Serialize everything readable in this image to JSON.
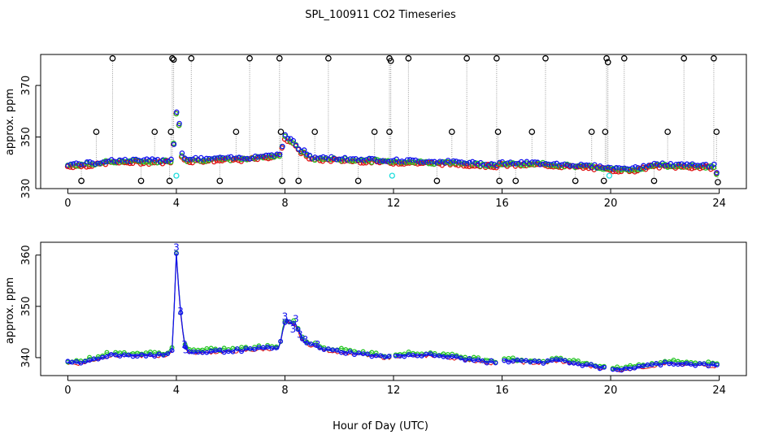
{
  "figure": {
    "title": "SPL_100911  CO2 Timeseries",
    "xlabel": "Hour of Day (UTC)"
  },
  "colors": {
    "black": "#000000",
    "red": "#e01010",
    "green": "#22c422",
    "blue": "#1212ee",
    "cyan": "#22dddd",
    "gray": "#9a9a9a"
  },
  "chart_data": [
    {
      "type": "scatter",
      "title": "",
      "xlabel": "",
      "ylabel": "approx. ppm",
      "xlim": [
        -1,
        25
      ],
      "ylim": [
        330,
        382
      ],
      "xticks": [
        0,
        4,
        8,
        12,
        16,
        20,
        24
      ],
      "xtick_labels": [
        "0",
        "4",
        "8",
        "12",
        "16",
        "20",
        "24"
      ],
      "yticks": [
        330,
        350,
        370
      ],
      "ytick_labels": [
        "330",
        "350",
        "370"
      ],
      "baseline": [
        [
          0,
          339
        ],
        [
          1,
          339.5
        ],
        [
          1.5,
          340.5
        ],
        [
          3.5,
          340.5
        ],
        [
          3.85,
          341
        ],
        [
          4.02,
          362
        ],
        [
          4.1,
          355
        ],
        [
          4.2,
          343
        ],
        [
          4.4,
          341
        ],
        [
          6.5,
          341.5
        ],
        [
          7.8,
          343
        ],
        [
          8,
          350
        ],
        [
          8.3,
          348
        ],
        [
          8.5,
          345
        ],
        [
          8.7,
          344
        ],
        [
          9,
          341.5
        ],
        [
          9.5,
          341.5
        ],
        [
          12,
          340.5
        ],
        [
          14,
          340
        ],
        [
          15.8,
          339
        ],
        [
          15.9,
          339.5
        ],
        [
          17.5,
          339.5
        ],
        [
          19.8,
          338
        ],
        [
          19.9,
          337.5
        ],
        [
          21,
          337.5
        ],
        [
          21.5,
          339
        ],
        [
          23.8,
          338.5
        ],
        [
          23.9,
          336
        ]
      ],
      "spikes_high": [
        {
          "x": 1.65,
          "y": 380.5
        },
        {
          "x": 3.85,
          "y": 380.5
        },
        {
          "x": 3.9,
          "y": 380
        },
        {
          "x": 4.55,
          "y": 380.5
        },
        {
          "x": 6.7,
          "y": 380.5
        },
        {
          "x": 7.8,
          "y": 380.5
        },
        {
          "x": 9.6,
          "y": 380.5
        },
        {
          "x": 11.85,
          "y": 380.5
        },
        {
          "x": 11.9,
          "y": 379.5
        },
        {
          "x": 12.55,
          "y": 380.5
        },
        {
          "x": 14.7,
          "y": 380.5
        },
        {
          "x": 15.8,
          "y": 380.5
        },
        {
          "x": 17.6,
          "y": 380.5
        },
        {
          "x": 19.85,
          "y": 380.5
        },
        {
          "x": 19.9,
          "y": 379
        },
        {
          "x": 20.5,
          "y": 380.5
        },
        {
          "x": 22.7,
          "y": 380.5
        },
        {
          "x": 23.8,
          "y": 380.5
        }
      ],
      "spikes_mid": [
        {
          "x": 1.05,
          "y": 352
        },
        {
          "x": 3.2,
          "y": 352
        },
        {
          "x": 3.8,
          "y": 352
        },
        {
          "x": 6.2,
          "y": 352
        },
        {
          "x": 7.85,
          "y": 352
        },
        {
          "x": 9.1,
          "y": 352
        },
        {
          "x": 11.3,
          "y": 352
        },
        {
          "x": 11.85,
          "y": 352
        },
        {
          "x": 14.15,
          "y": 352
        },
        {
          "x": 15.85,
          "y": 352
        },
        {
          "x": 17.1,
          "y": 352
        },
        {
          "x": 19.3,
          "y": 352
        },
        {
          "x": 19.8,
          "y": 352
        },
        {
          "x": 22.1,
          "y": 352
        },
        {
          "x": 23.9,
          "y": 352
        }
      ],
      "spikes_low": [
        {
          "x": 0.5,
          "y": 333
        },
        {
          "x": 2.7,
          "y": 333
        },
        {
          "x": 3.75,
          "y": 333
        },
        {
          "x": 5.6,
          "y": 333
        },
        {
          "x": 7.9,
          "y": 333
        },
        {
          "x": 8.5,
          "y": 333
        },
        {
          "x": 10.7,
          "y": 333
        },
        {
          "x": 13.6,
          "y": 333
        },
        {
          "x": 15.9,
          "y": 333
        },
        {
          "x": 16.5,
          "y": 333
        },
        {
          "x": 18.7,
          "y": 333
        },
        {
          "x": 19.75,
          "y": 333
        },
        {
          "x": 21.6,
          "y": 333
        },
        {
          "x": 23.95,
          "y": 332.5
        }
      ],
      "cyan_points": [
        {
          "x": 4.0,
          "y": 335
        },
        {
          "x": 11.95,
          "y": 335
        },
        {
          "x": 19.95,
          "y": 335
        }
      ]
    },
    {
      "type": "line",
      "title": "",
      "xlabel": "Hour of Day (UTC)",
      "ylabel": "approx. ppm",
      "xlim": [
        -1,
        25
      ],
      "ylim": [
        336.5,
        362.5
      ],
      "xticks": [
        0,
        4,
        8,
        12,
        16,
        20,
        24
      ],
      "xtick_labels": [
        "0",
        "4",
        "8",
        "12",
        "16",
        "20",
        "24"
      ],
      "yticks": [
        340,
        350,
        360
      ],
      "ytick_labels": [
        "340",
        "350",
        "360"
      ],
      "series_names": [
        "blue",
        "green",
        "red"
      ],
      "gaps": [
        [
          11.98,
          12.02
        ],
        [
          15.78,
          16.02
        ],
        [
          19.8,
          20.02
        ]
      ],
      "baseline": [
        [
          0,
          339
        ],
        [
          0.5,
          339
        ],
        [
          1.5,
          340.5
        ],
        [
          3.6,
          340.5
        ],
        [
          3.85,
          341.5
        ],
        [
          4.0,
          360
        ],
        [
          4.15,
          349
        ],
        [
          4.3,
          342.5
        ],
        [
          4.5,
          341
        ],
        [
          6.5,
          341.5
        ],
        [
          7.8,
          342
        ],
        [
          7.95,
          346
        ],
        [
          8.05,
          347.5
        ],
        [
          8.2,
          346.5
        ],
        [
          8.35,
          347
        ],
        [
          8.5,
          345
        ],
        [
          8.7,
          343
        ],
        [
          9.3,
          342
        ],
        [
          9.6,
          341.5
        ],
        [
          11.9,
          340
        ],
        [
          12,
          340.5
        ],
        [
          13.5,
          340.5
        ],
        [
          15.8,
          339
        ],
        [
          16,
          339.5
        ],
        [
          17.5,
          339
        ],
        [
          18,
          339.5
        ],
        [
          19.8,
          338
        ],
        [
          20,
          337.5
        ],
        [
          21.5,
          338.5
        ],
        [
          22,
          339
        ],
        [
          23.9,
          338.5
        ]
      ],
      "labels_3": [
        {
          "x": 4.0,
          "y": 361.5,
          "text": "3"
        },
        {
          "x": 4.15,
          "y": 349,
          "text": "3"
        },
        {
          "x": 4.3,
          "y": 342.5,
          "text": "3"
        },
        {
          "x": 8.0,
          "y": 348,
          "text": "3"
        },
        {
          "x": 8.4,
          "y": 347.5,
          "text": "3"
        },
        {
          "x": 8.3,
          "y": 345.5,
          "text": "3"
        },
        {
          "x": 8.55,
          "y": 344.5,
          "text": "3"
        },
        {
          "x": 8.75,
          "y": 343.5,
          "text": "3"
        },
        {
          "x": 9.2,
          "y": 342.5,
          "text": "3"
        },
        {
          "x": 4.35,
          "y": 341.5,
          "text": "3"
        }
      ]
    }
  ]
}
